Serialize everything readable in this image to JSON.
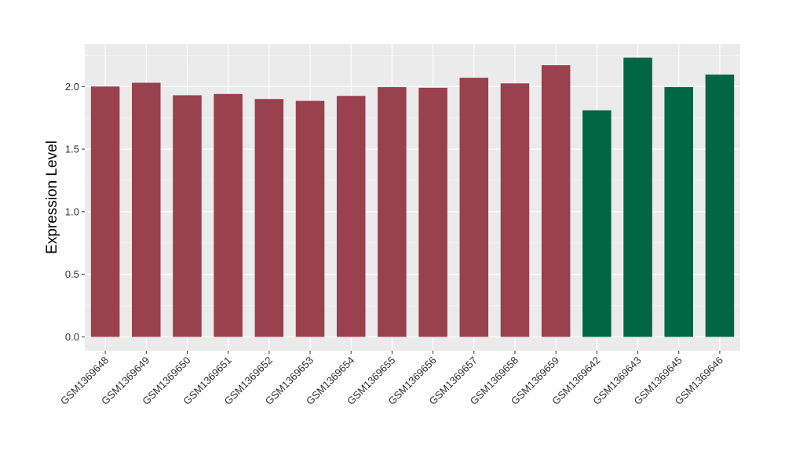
{
  "chart_data": {
    "type": "bar",
    "title": "",
    "xlabel": "",
    "ylabel": "Expression Level",
    "ylim": [
      -0.11,
      2.34
    ],
    "yticks": [
      0.0,
      0.5,
      1.0,
      1.5,
      2.0
    ],
    "ytick_labels": [
      "0.0",
      "0.5",
      "1.0",
      "1.5",
      "2.0"
    ],
    "categories": [
      "GSM1369648",
      "GSM1369649",
      "GSM1369650",
      "GSM1369651",
      "GSM1369652",
      "GSM1369653",
      "GSM1369654",
      "GSM1369655",
      "GSM1369656",
      "GSM1369657",
      "GSM1369658",
      "GSM1369659",
      "GSM1369642",
      "GSM1369643",
      "GSM1369645",
      "GSM1369646"
    ],
    "values": [
      2.0,
      2.03,
      1.93,
      1.94,
      1.9,
      1.885,
      1.925,
      1.995,
      1.99,
      2.07,
      2.025,
      2.17,
      1.81,
      2.23,
      1.995,
      2.095
    ],
    "group_index": [
      0,
      0,
      0,
      0,
      0,
      0,
      0,
      0,
      0,
      0,
      0,
      0,
      1,
      1,
      1,
      1
    ],
    "group_colors": [
      "#99414f",
      "#006644"
    ],
    "grid": true,
    "panel_background": "#ebebeb",
    "legend": "none"
  }
}
